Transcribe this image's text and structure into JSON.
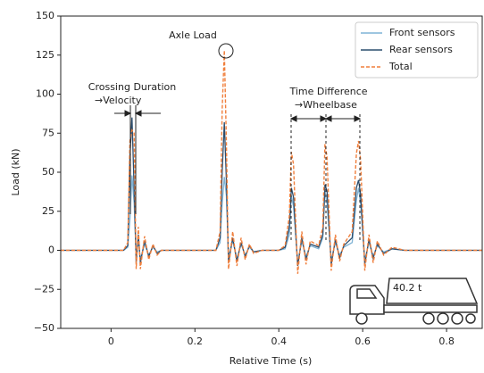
{
  "chart_data": {
    "type": "line",
    "xlabel": "Relative Time (s)",
    "ylabel": "Load (kN)",
    "x": [
      -0.12,
      0.0,
      0.03,
      0.04,
      0.045,
      0.05,
      0.055,
      0.06,
      0.065,
      0.07,
      0.08,
      0.09,
      0.1,
      0.11,
      0.12,
      0.14,
      0.2,
      0.25,
      0.26,
      0.265,
      0.27,
      0.275,
      0.28,
      0.29,
      0.3,
      0.31,
      0.32,
      0.33,
      0.34,
      0.36,
      0.4,
      0.415,
      0.425,
      0.43,
      0.435,
      0.445,
      0.455,
      0.465,
      0.475,
      0.495,
      0.505,
      0.51,
      0.515,
      0.525,
      0.535,
      0.545,
      0.555,
      0.575,
      0.585,
      0.59,
      0.595,
      0.605,
      0.615,
      0.625,
      0.635,
      0.65,
      0.67,
      0.7,
      0.885
    ],
    "series": [
      {
        "name": "Front sensors",
        "color": "#7fb3d5",
        "values": [
          0,
          0,
          0,
          2,
          20,
          48,
          30,
          -5,
          8,
          -6,
          4,
          -3,
          2,
          -1,
          0,
          0,
          0,
          0,
          5,
          30,
          47,
          35,
          -4,
          6,
          -5,
          4,
          -3,
          2,
          -1,
          0,
          0,
          1,
          10,
          35,
          28,
          -8,
          6,
          -4,
          3,
          1,
          8,
          38,
          30,
          -6,
          5,
          -3,
          2,
          5,
          32,
          40,
          30,
          -6,
          5,
          -4,
          3,
          -1,
          1,
          0,
          0
        ]
      },
      {
        "name": "Rear sensors",
        "color": "#2c4e6e",
        "values": [
          0,
          0,
          0,
          3,
          60,
          85,
          40,
          -8,
          10,
          -8,
          6,
          -4,
          3,
          -2,
          0,
          0,
          0,
          0,
          8,
          50,
          82,
          45,
          -8,
          8,
          -7,
          5,
          -4,
          3,
          -1,
          0,
          0,
          2,
          15,
          40,
          34,
          -10,
          8,
          -6,
          4,
          2,
          10,
          42,
          38,
          -9,
          7,
          -5,
          3,
          8,
          40,
          45,
          36,
          -9,
          7,
          -5,
          4,
          -2,
          1,
          0,
          0
        ]
      },
      {
        "name": "Total",
        "color": "#f07f3c",
        "dashed": true,
        "values": [
          0,
          0,
          0,
          5,
          70,
          77,
          75,
          -12,
          15,
          -12,
          9,
          -6,
          4,
          -3,
          0,
          0,
          0,
          0,
          12,
          90,
          128,
          70,
          -12,
          12,
          -10,
          8,
          -6,
          4,
          -2,
          0,
          0,
          3,
          22,
          63,
          55,
          -15,
          12,
          -9,
          6,
          3,
          15,
          68,
          60,
          -13,
          10,
          -7,
          4,
          12,
          62,
          70,
          58,
          -13,
          10,
          -8,
          6,
          -3,
          2,
          0,
          0
        ]
      }
    ],
    "xlim": [
      -0.12,
      0.885
    ],
    "ylim": [
      -50,
      150
    ],
    "xticks": [
      0,
      0.2,
      0.4,
      0.6,
      0.8
    ],
    "yticks": [
      {
        "value": -50,
        "label": "−50"
      },
      {
        "value": -25,
        "label": "−25"
      },
      0,
      25,
      50,
      75,
      100,
      125,
      150
    ],
    "legend": "upper right",
    "annotations": [
      "Axle Load",
      "Crossing Duration",
      "→Velocity",
      "Time Difference",
      "→Wheelbase",
      "40.2 t"
    ]
  }
}
